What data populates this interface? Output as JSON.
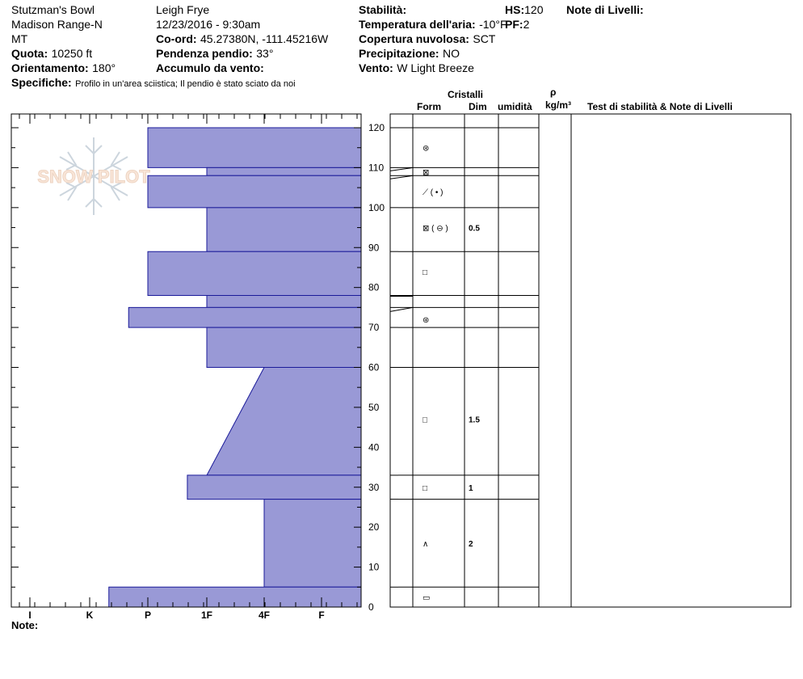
{
  "header": {
    "location": "Stutzman's Bowl",
    "range": "Madison Range-N",
    "state": "MT",
    "elevation_label": "Quota:",
    "elevation_value": "10250 ft",
    "aspect_label": "Orientamento:",
    "aspect_value": "180°",
    "specifics_label": "Specifiche:",
    "specifics_value": "Profilo in un'area sciistica; Il pendio è stato sciato da noi",
    "observer": "Leigh Frye",
    "datetime": "12/23/2016 - 9:30am",
    "coord_label": "Co-ord:",
    "coord_value": "45.27380N, -111.45216W",
    "slope_label": "Pendenza pendio:",
    "slope_value": "33°",
    "wind_loading_label": "Accumulo da vento:",
    "wind_loading_value": "",
    "stability_label": "Stabilità:",
    "stability_value": "",
    "air_temp_label": "Temperatura dell'aria:",
    "air_temp_value": "-10°F",
    "cloud_label": "Copertura nuvolosa:",
    "cloud_value": "SCT",
    "precip_label": "Precipitazione:",
    "precip_value": "NO",
    "wind_label": "Vento:",
    "wind_value": "W Light Breeze",
    "hs_label": "HS:",
    "hs_value": "120",
    "pf_label": "PF:",
    "pf_value": "2",
    "layer_notes_label": "Note di Livelli:"
  },
  "watermark": "SNOW PILOT",
  "columns": {
    "crystals": "Cristalli",
    "form": "Form",
    "size": "Dim",
    "moisture": "umidità",
    "rho": "ρ",
    "density_unit": "kg/m³",
    "tests": "Test di stabilità & Note di Livelli"
  },
  "note_label": "Note:",
  "colors": {
    "hardness_fill": "#9999d6",
    "hardness_stroke": "#1a1a99"
  },
  "chart_data": {
    "type": "hardness_profile",
    "x_ticks": [
      "I",
      "K",
      "P",
      "1F",
      "4F",
      "F"
    ],
    "hardness_scale_note": "hardness index: F=1, 4F=2, 1F=3, P=4, K=5, I=6",
    "ylim": [
      0,
      120
    ],
    "y_ticks": [
      0,
      10,
      20,
      30,
      40,
      50,
      60,
      70,
      80,
      90,
      100,
      110,
      120
    ],
    "layers": [
      {
        "bottom": 110,
        "top": 120,
        "hardness_bottom": 4,
        "hardness_top": 4
      },
      {
        "bottom": 108,
        "top": 110,
        "hardness_bottom": 3,
        "hardness_top": 3
      },
      {
        "bottom": 100,
        "top": 108,
        "hardness_bottom": 4,
        "hardness_top": 4
      },
      {
        "bottom": 89,
        "top": 100,
        "hardness_bottom": 3,
        "hardness_top": 3
      },
      {
        "bottom": 78,
        "top": 89,
        "hardness_bottom": 4,
        "hardness_top": 4
      },
      {
        "bottom": 75,
        "top": 78,
        "hardness_bottom": 3,
        "hardness_top": 3
      },
      {
        "bottom": 70,
        "top": 75,
        "hardness_bottom": 4.33,
        "hardness_top": 4.33
      },
      {
        "bottom": 60,
        "top": 70,
        "hardness_bottom": 3,
        "hardness_top": 3
      },
      {
        "bottom": 33,
        "top": 60,
        "hardness_bottom": 3,
        "hardness_top": 2
      },
      {
        "bottom": 27,
        "top": 33,
        "hardness_bottom": 3.33,
        "hardness_top": 3.33
      },
      {
        "bottom": 5,
        "top": 27,
        "hardness_bottom": 2,
        "hardness_top": 2
      },
      {
        "bottom": 0,
        "top": 5,
        "hardness_bottom": 4.67,
        "hardness_top": 4.67
      }
    ],
    "layer_boundaries": [
      120,
      110,
      108,
      100,
      89,
      78,
      75,
      70,
      60,
      33,
      27,
      5,
      0
    ],
    "crystals": [
      {
        "height": 115,
        "form": "⊛",
        "size": ""
      },
      {
        "height": 109,
        "form": "⊠",
        "size": ""
      },
      {
        "height": 104,
        "form": "⟋ ( • )",
        "size": ""
      },
      {
        "height": 95,
        "form": "⊠ ( ⊖ )",
        "size": "0.5"
      },
      {
        "height": 84,
        "form": "□",
        "size": ""
      },
      {
        "height": 72,
        "form": "⊛",
        "size": ""
      },
      {
        "height": 47,
        "form": "□",
        "size": "1.5"
      },
      {
        "height": 30,
        "form": "□",
        "size": "1"
      },
      {
        "height": 16,
        "form": "∧",
        "size": "2"
      },
      {
        "height": 2.5,
        "form": "▭",
        "size": ""
      }
    ]
  }
}
